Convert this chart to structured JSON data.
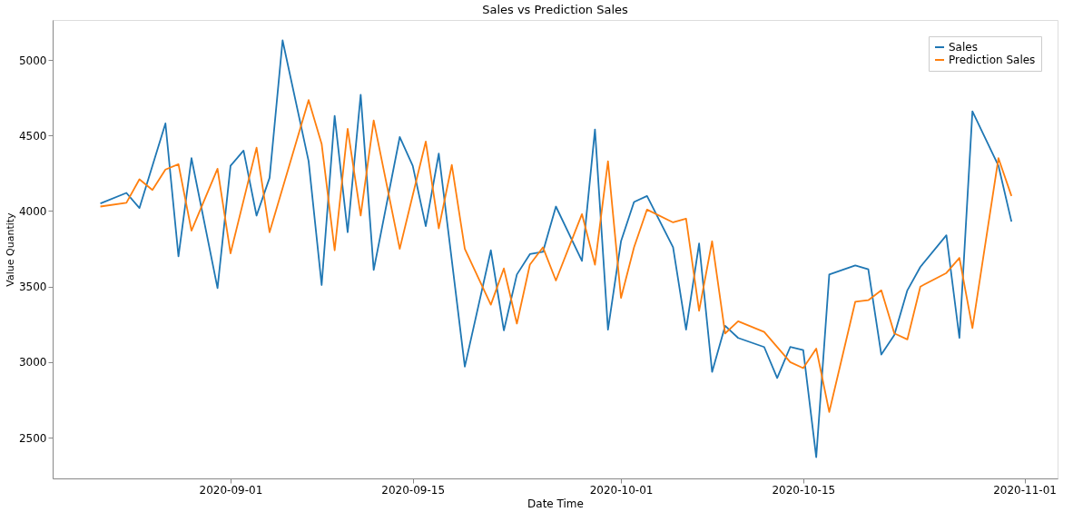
{
  "chart_data": {
    "type": "line",
    "title": "Sales vs Prediction Sales",
    "xlabel": "Date Time",
    "ylabel": "Value Quantity",
    "xlim": [
      "2020-08-18T08:00",
      "2020-11-03T13:00"
    ],
    "xticks": [
      {
        "value": "2020-09-01",
        "label": "2020-09-01"
      },
      {
        "value": "2020-09-15",
        "label": "2020-09-15"
      },
      {
        "value": "2020-10-01",
        "label": "2020-10-01"
      },
      {
        "value": "2020-10-15",
        "label": "2020-10-15"
      },
      {
        "value": "2020-11-01",
        "label": "2020-11-01"
      }
    ],
    "ylim": [
      2230,
      5265
    ],
    "yticks": [
      2500,
      3000,
      3500,
      4000,
      4500,
      5000
    ],
    "grid": false,
    "legend": "top right",
    "line_style": "solid",
    "marker": "none",
    "series": [
      {
        "name": "Sales",
        "color": "#1f77b4",
        "x": [
          "2020-08-22",
          "2020-08-24",
          "2020-08-25",
          "2020-08-27",
          "2020-08-28",
          "2020-08-29",
          "2020-08-31",
          "2020-09-01",
          "2020-09-02",
          "2020-09-03",
          "2020-09-04",
          "2020-09-05",
          "2020-09-07",
          "2020-09-08",
          "2020-09-09",
          "2020-09-10",
          "2020-09-11",
          "2020-09-12",
          "2020-09-14",
          "2020-09-15",
          "2020-09-16",
          "2020-09-17",
          "2020-09-19",
          "2020-09-21",
          "2020-09-22",
          "2020-09-23",
          "2020-09-24",
          "2020-09-25",
          "2020-09-26",
          "2020-09-28",
          "2020-09-29",
          "2020-09-30",
          "2020-10-01",
          "2020-10-02",
          "2020-10-03",
          "2020-10-05",
          "2020-10-06",
          "2020-10-07",
          "2020-10-08",
          "2020-10-09",
          "2020-10-10",
          "2020-10-12",
          "2020-10-13",
          "2020-10-14",
          "2020-10-15",
          "2020-10-16",
          "2020-10-17",
          "2020-10-19",
          "2020-10-20",
          "2020-10-21",
          "2020-10-22",
          "2020-10-23",
          "2020-10-24",
          "2020-10-26",
          "2020-10-27",
          "2020-10-28",
          "2020-10-30",
          "2020-10-31"
        ],
        "values": [
          4050,
          4120,
          4020,
          4580,
          3700,
          4350,
          3490,
          4300,
          4400,
          3970,
          4220,
          5130,
          4330,
          3510,
          4630,
          3860,
          4770,
          3610,
          4490,
          4300,
          3900,
          4380,
          2970,
          3740,
          3210,
          3580,
          3715,
          3730,
          4030,
          3670,
          4540,
          3215,
          3800,
          4060,
          4100,
          3760,
          3215,
          3785,
          2935,
          3240,
          3160,
          3100,
          2895,
          3100,
          3080,
          2370,
          3580,
          3640,
          3615,
          3050,
          3180,
          3475,
          3630,
          3840,
          3160,
          4660,
          4300,
          3930
        ]
      },
      {
        "name": "Prediction Sales",
        "color": "#ff7f0e",
        "x": [
          "2020-08-22",
          "2020-08-24",
          "2020-08-25",
          "2020-08-26",
          "2020-08-27",
          "2020-08-28",
          "2020-08-29",
          "2020-08-31",
          "2020-09-01",
          "2020-09-03",
          "2020-09-04",
          "2020-09-07",
          "2020-09-08",
          "2020-09-09",
          "2020-09-10",
          "2020-09-11",
          "2020-09-12",
          "2020-09-14",
          "2020-09-16",
          "2020-09-17",
          "2020-09-18",
          "2020-09-19",
          "2020-09-21",
          "2020-09-22",
          "2020-09-23",
          "2020-09-24",
          "2020-09-25",
          "2020-09-26",
          "2020-09-28",
          "2020-09-29",
          "2020-09-30",
          "2020-10-01",
          "2020-10-02",
          "2020-10-03",
          "2020-10-05",
          "2020-10-06",
          "2020-10-07",
          "2020-10-08",
          "2020-10-09",
          "2020-10-10",
          "2020-10-12",
          "2020-10-14",
          "2020-10-15",
          "2020-10-16",
          "2020-10-17",
          "2020-10-19",
          "2020-10-20",
          "2020-10-21",
          "2020-10-22",
          "2020-10-23",
          "2020-10-24",
          "2020-10-26",
          "2020-10-27",
          "2020-10-28",
          "2020-10-30",
          "2020-10-31"
        ],
        "values": [
          4030,
          4055,
          4210,
          4140,
          4275,
          4310,
          3870,
          4280,
          3720,
          4420,
          3860,
          4735,
          4445,
          3740,
          4545,
          3970,
          4600,
          3750,
          4460,
          3885,
          4305,
          3750,
          3380,
          3620,
          3255,
          3645,
          3760,
          3540,
          3980,
          3645,
          4330,
          3425,
          3760,
          4010,
          3925,
          3950,
          3340,
          3800,
          3190,
          3270,
          3200,
          3000,
          2960,
          3090,
          2670,
          3400,
          3410,
          3475,
          3190,
          3150,
          3500,
          3590,
          3690,
          3225,
          4350,
          4100
        ]
      }
    ]
  }
}
